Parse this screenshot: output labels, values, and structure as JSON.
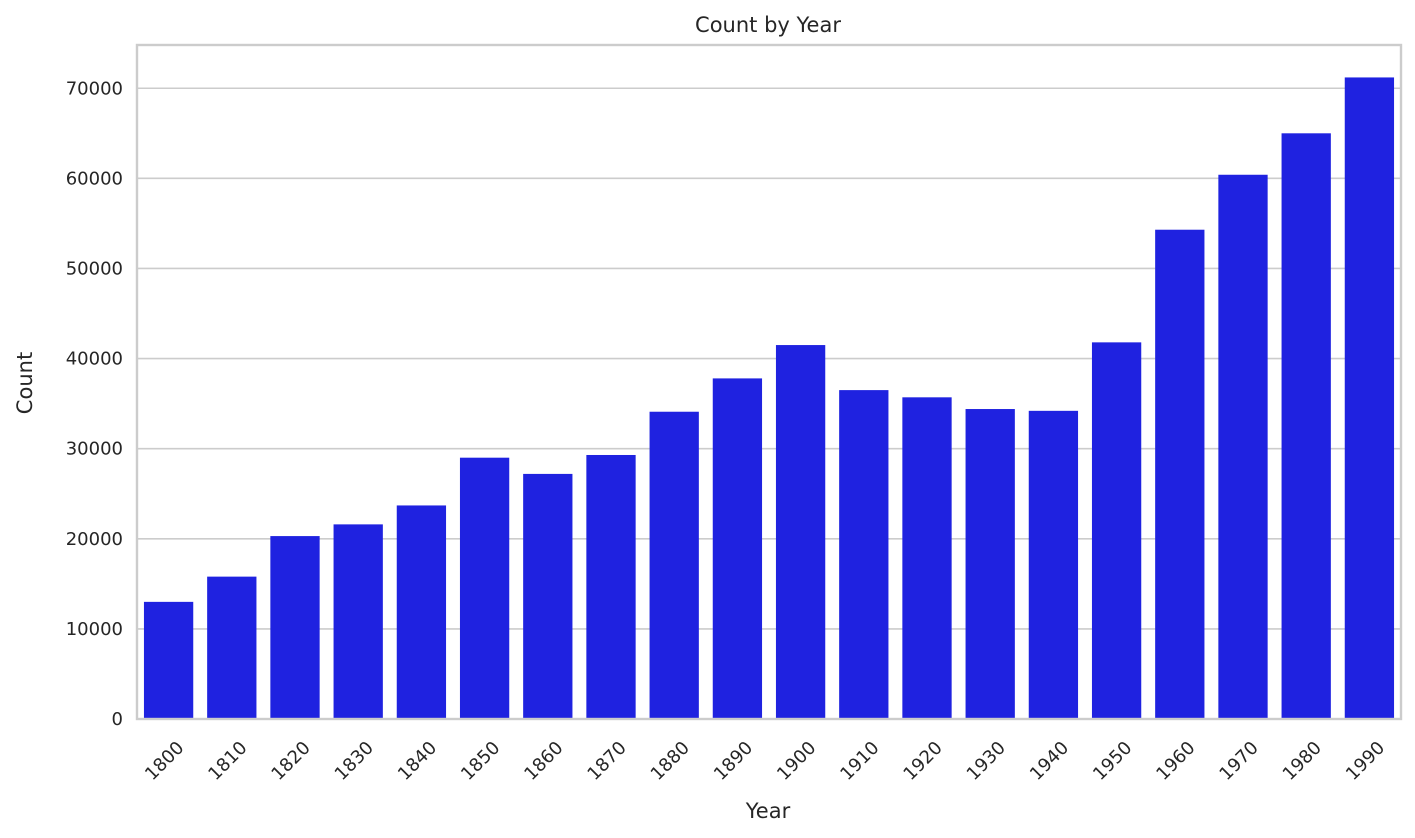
{
  "chart_data": {
    "type": "bar",
    "title": "Count by Year",
    "xlabel": "Year",
    "ylabel": "Count",
    "categories": [
      "1800",
      "1810",
      "1820",
      "1830",
      "1840",
      "1850",
      "1860",
      "1870",
      "1880",
      "1890",
      "1900",
      "1910",
      "1920",
      "1930",
      "1940",
      "1950",
      "1960",
      "1970",
      "1980",
      "1990"
    ],
    "values": [
      13000,
      15800,
      20300,
      21600,
      23700,
      29000,
      27200,
      29300,
      34100,
      37800,
      41500,
      36500,
      35700,
      34400,
      34200,
      41800,
      54300,
      60400,
      65000,
      71200
    ],
    "ylim": [
      0,
      74800
    ],
    "yticks": [
      0,
      10000,
      20000,
      30000,
      40000,
      50000,
      60000,
      70000
    ],
    "grid": true,
    "bar_color": "#1f22e0",
    "x_tick_rotation": -45
  }
}
